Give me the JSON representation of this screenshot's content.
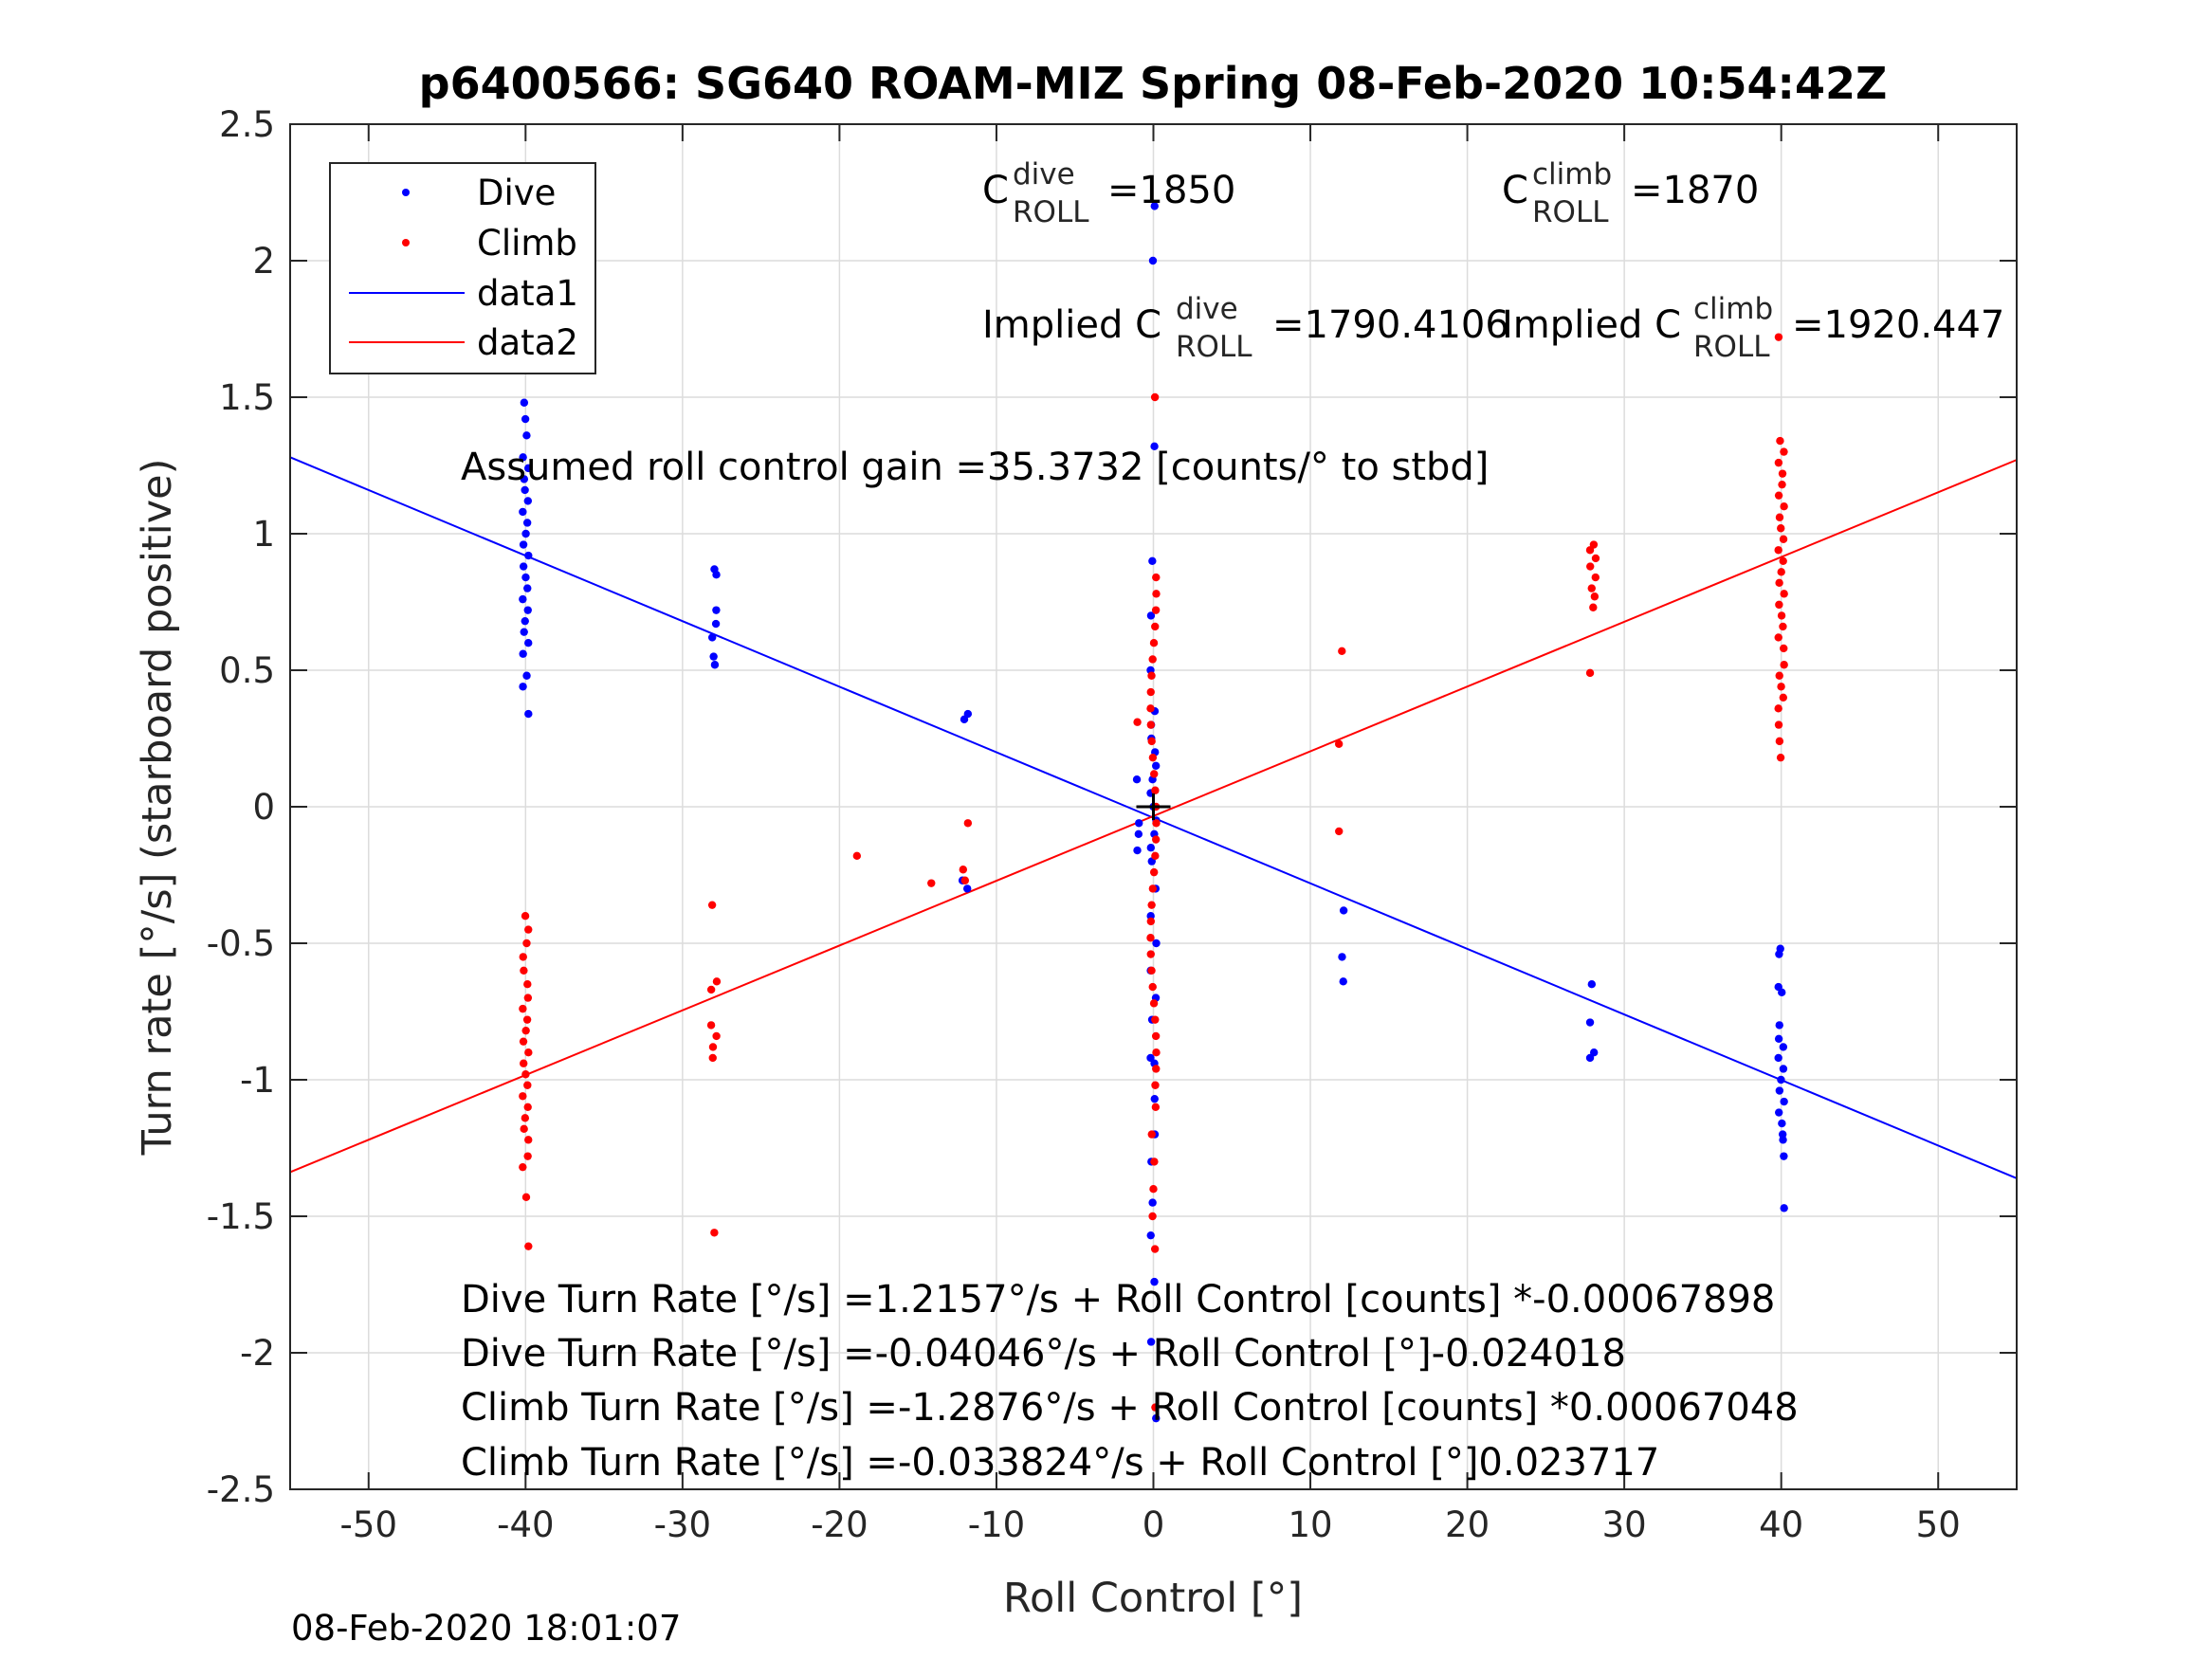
{
  "chart_data": {
    "type": "scatter",
    "title": "p6400566: SG640 ROAM-MIZ Spring 08-Feb-2020 10:54:42Z",
    "xlabel": "Roll Control [°]",
    "ylabel": "Turn rate [°/s] (starboard positive)",
    "xlim": [
      -55,
      55
    ],
    "ylim": [
      -2.5,
      2.5
    ],
    "xticks": [
      -50,
      -40,
      -30,
      -20,
      -10,
      0,
      10,
      20,
      30,
      40,
      50
    ],
    "yticks": [
      -2.5,
      -2,
      -1.5,
      -1,
      -0.5,
      0,
      0.5,
      1,
      1.5,
      2,
      2.5
    ],
    "xtick_labels": [
      "-50",
      "-40",
      "-30",
      "-20",
      "-10",
      "0",
      "10",
      "20",
      "30",
      "40",
      "50"
    ],
    "ytick_labels": [
      "-2.5",
      "-2",
      "-1.5",
      "-1",
      "-0.5",
      "0",
      "0.5",
      "1",
      "1.5",
      "2",
      "2.5"
    ],
    "grid": true,
    "legend_position": "top-left",
    "series": [
      {
        "name": "Dive",
        "kind": "points",
        "color": "#0000ff",
        "points": [
          [
            -40,
            1.48
          ],
          [
            -40,
            1.42
          ],
          [
            -40,
            1.36
          ],
          [
            -40,
            1.28
          ],
          [
            -40,
            1.24
          ],
          [
            -40,
            1.2
          ],
          [
            -40,
            1.16
          ],
          [
            -40,
            1.12
          ],
          [
            -40,
            1.08
          ],
          [
            -40,
            1.04
          ],
          [
            -40,
            1.0
          ],
          [
            -40,
            0.96
          ],
          [
            -40,
            0.92
          ],
          [
            -40,
            0.88
          ],
          [
            -40,
            0.84
          ],
          [
            -40,
            0.8
          ],
          [
            -40,
            0.76
          ],
          [
            -40,
            0.72
          ],
          [
            -40,
            0.68
          ],
          [
            -40,
            0.64
          ],
          [
            -40,
            0.6
          ],
          [
            -40,
            0.56
          ],
          [
            -40,
            0.48
          ],
          [
            -40,
            0.44
          ],
          [
            -40,
            0.34
          ],
          [
            -28,
            0.87
          ],
          [
            -28,
            0.85
          ],
          [
            -28,
            0.72
          ],
          [
            -28,
            0.67
          ],
          [
            -28,
            0.62
          ],
          [
            -28,
            0.55
          ],
          [
            -28,
            0.52
          ],
          [
            -12,
            0.34
          ],
          [
            -12,
            0.32
          ],
          [
            -12,
            -0.27
          ],
          [
            -12,
            -0.3
          ],
          [
            -1,
            0.1
          ],
          [
            -1,
            -0.06
          ],
          [
            -1,
            -0.1
          ],
          [
            -1,
            -0.16
          ],
          [
            0,
            2.2
          ],
          [
            0,
            2.0
          ],
          [
            0,
            1.32
          ],
          [
            0,
            0.9
          ],
          [
            0,
            0.7
          ],
          [
            0,
            0.5
          ],
          [
            0,
            0.35
          ],
          [
            0,
            0.3
          ],
          [
            0,
            0.25
          ],
          [
            0,
            0.2
          ],
          [
            0,
            0.15
          ],
          [
            0,
            0.1
          ],
          [
            0,
            0.05
          ],
          [
            0,
            0.0
          ],
          [
            0,
            -0.05
          ],
          [
            0,
            -0.1
          ],
          [
            0,
            -0.15
          ],
          [
            0,
            -0.2
          ],
          [
            0,
            -0.3
          ],
          [
            0,
            -0.4
          ],
          [
            0,
            -0.5
          ],
          [
            0,
            -0.6
          ],
          [
            0,
            -0.7
          ],
          [
            0,
            -0.78
          ],
          [
            0,
            -0.92
          ],
          [
            0,
            -0.94
          ],
          [
            0,
            -1.07
          ],
          [
            0,
            -1.2
          ],
          [
            0,
            -1.3
          ],
          [
            0,
            -1.45
          ],
          [
            0,
            -1.57
          ],
          [
            0,
            -1.74
          ],
          [
            0,
            -1.96
          ],
          [
            0,
            -2.24
          ],
          [
            12,
            -0.38
          ],
          [
            12,
            -0.55
          ],
          [
            12,
            -0.64
          ],
          [
            28,
            -0.65
          ],
          [
            28,
            -0.79
          ],
          [
            28,
            -0.9
          ],
          [
            28,
            -0.92
          ],
          [
            40,
            -0.52
          ],
          [
            40,
            -0.54
          ],
          [
            40,
            -0.66
          ],
          [
            40,
            -0.68
          ],
          [
            40,
            -0.8
          ],
          [
            40,
            -0.85
          ],
          [
            40,
            -0.88
          ],
          [
            40,
            -0.92
          ],
          [
            40,
            -0.96
          ],
          [
            40,
            -1.0
          ],
          [
            40,
            -1.04
          ],
          [
            40,
            -1.08
          ],
          [
            40,
            -1.12
          ],
          [
            40,
            -1.16
          ],
          [
            40,
            -1.2
          ],
          [
            40,
            -1.22
          ],
          [
            40,
            -1.28
          ],
          [
            40,
            -1.47
          ]
        ]
      },
      {
        "name": "Climb",
        "kind": "points",
        "color": "#ff0000",
        "points": [
          [
            -40,
            -0.4
          ],
          [
            -40,
            -0.45
          ],
          [
            -40,
            -0.5
          ],
          [
            -40,
            -0.55
          ],
          [
            -40,
            -0.6
          ],
          [
            -40,
            -0.65
          ],
          [
            -40,
            -0.7
          ],
          [
            -40,
            -0.74
          ],
          [
            -40,
            -0.78
          ],
          [
            -40,
            -0.82
          ],
          [
            -40,
            -0.86
          ],
          [
            -40,
            -0.9
          ],
          [
            -40,
            -0.94
          ],
          [
            -40,
            -0.98
          ],
          [
            -40,
            -1.02
          ],
          [
            -40,
            -1.06
          ],
          [
            -40,
            -1.1
          ],
          [
            -40,
            -1.14
          ],
          [
            -40,
            -1.18
          ],
          [
            -40,
            -1.22
          ],
          [
            -40,
            -1.28
          ],
          [
            -40,
            -1.32
          ],
          [
            -40,
            -1.43
          ],
          [
            -40,
            -1.61
          ],
          [
            -28,
            -0.36
          ],
          [
            -28,
            -0.64
          ],
          [
            -28,
            -0.67
          ],
          [
            -28,
            -0.8
          ],
          [
            -28,
            -0.84
          ],
          [
            -28,
            -0.88
          ],
          [
            -28,
            -0.92
          ],
          [
            -28,
            -1.56
          ],
          [
            -19,
            -0.18
          ],
          [
            -14,
            -0.28
          ],
          [
            -12,
            -0.06
          ],
          [
            -12,
            -0.23
          ],
          [
            -12,
            -0.27
          ],
          [
            -1,
            0.31
          ],
          [
            0,
            1.5
          ],
          [
            0,
            0.84
          ],
          [
            0,
            0.78
          ],
          [
            0,
            0.72
          ],
          [
            0,
            0.66
          ],
          [
            0,
            0.6
          ],
          [
            0,
            0.54
          ],
          [
            0,
            0.48
          ],
          [
            0,
            0.42
          ],
          [
            0,
            0.36
          ],
          [
            0,
            0.3
          ],
          [
            0,
            0.24
          ],
          [
            0,
            0.18
          ],
          [
            0,
            0.12
          ],
          [
            0,
            0.06
          ],
          [
            0,
            0.0
          ],
          [
            0,
            -0.06
          ],
          [
            0,
            -0.12
          ],
          [
            0,
            -0.18
          ],
          [
            0,
            -0.24
          ],
          [
            0,
            -0.3
          ],
          [
            0,
            -0.36
          ],
          [
            0,
            -0.42
          ],
          [
            0,
            -0.48
          ],
          [
            0,
            -0.54
          ],
          [
            0,
            -0.6
          ],
          [
            0,
            -0.66
          ],
          [
            0,
            -0.72
          ],
          [
            0,
            -0.78
          ],
          [
            0,
            -0.84
          ],
          [
            0,
            -0.9
          ],
          [
            0,
            -0.96
          ],
          [
            0,
            -1.02
          ],
          [
            0,
            -1.1
          ],
          [
            0,
            -1.2
          ],
          [
            0,
            -1.3
          ],
          [
            0,
            -1.4
          ],
          [
            0,
            -1.5
          ],
          [
            0,
            -1.62
          ],
          [
            0,
            -2.2
          ],
          [
            12,
            0.57
          ],
          [
            12,
            0.23
          ],
          [
            12,
            -0.09
          ],
          [
            28,
            0.96
          ],
          [
            28,
            0.94
          ],
          [
            28,
            0.91
          ],
          [
            28,
            0.88
          ],
          [
            28,
            0.84
          ],
          [
            28,
            0.8
          ],
          [
            28,
            0.77
          ],
          [
            28,
            0.73
          ],
          [
            28,
            0.49
          ],
          [
            40,
            1.72
          ],
          [
            40,
            1.34
          ],
          [
            40,
            1.3
          ],
          [
            40,
            1.26
          ],
          [
            40,
            1.22
          ],
          [
            40,
            1.18
          ],
          [
            40,
            1.14
          ],
          [
            40,
            1.1
          ],
          [
            40,
            1.06
          ],
          [
            40,
            1.02
          ],
          [
            40,
            0.98
          ],
          [
            40,
            0.94
          ],
          [
            40,
            0.9
          ],
          [
            40,
            0.86
          ],
          [
            40,
            0.82
          ],
          [
            40,
            0.78
          ],
          [
            40,
            0.74
          ],
          [
            40,
            0.7
          ],
          [
            40,
            0.66
          ],
          [
            40,
            0.62
          ],
          [
            40,
            0.58
          ],
          [
            40,
            0.52
          ],
          [
            40,
            0.48
          ],
          [
            40,
            0.44
          ],
          [
            40,
            0.4
          ],
          [
            40,
            0.36
          ],
          [
            40,
            0.3
          ],
          [
            40,
            0.24
          ],
          [
            40,
            0.18
          ]
        ]
      },
      {
        "name": "data1",
        "kind": "line",
        "color": "#0000ff",
        "x": [
          -55,
          55
        ],
        "y": [
          1.28,
          -1.361
        ]
      },
      {
        "name": "data2",
        "kind": "line",
        "color": "#ff0000",
        "x": [
          -55,
          55
        ],
        "y": [
          -1.3384,
          1.2704
        ]
      }
    ],
    "center_marker": [
      0,
      0
    ]
  },
  "annotations": {
    "c_dive": {
      "base": "C",
      "sup": "dive",
      "sub": "ROLL",
      "value": "=1850"
    },
    "c_climb": {
      "base": "C",
      "sup": "climb",
      "sub": "ROLL",
      "value": "=1870"
    },
    "implied_dive": {
      "prefix": "Implied C",
      "sup": "dive",
      "sub": "ROLL",
      "value": "=1790.4106"
    },
    "implied_climb": {
      "prefix": "Implied C",
      "sup": "climb",
      "sub": "ROLL",
      "value": "=1920.447"
    },
    "gain": "Assumed roll control gain =35.3732 [counts/° to stbd]",
    "eq1": "Dive Turn Rate [°/s] =1.2157°/s + Roll Control [counts] *-0.00067898",
    "eq2": "Dive Turn Rate [°/s] =-0.04046°/s + Roll Control [°]-0.024018",
    "eq3": "Climb Turn Rate [°/s] =-1.2876°/s + Roll Control [counts] *0.00067048",
    "eq4": "Climb Turn Rate [°/s] =-0.033824°/s + Roll Control [°]0.023717"
  },
  "timestamp": "08-Feb-2020 18:01:07"
}
